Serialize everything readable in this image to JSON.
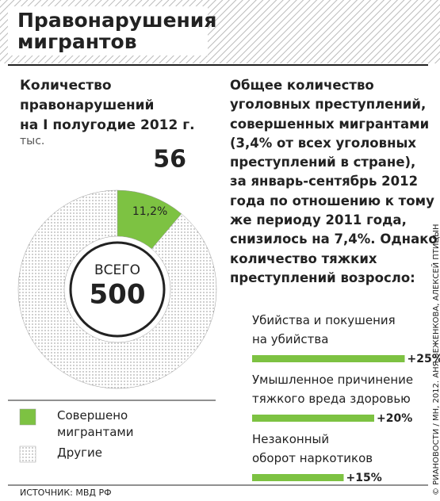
{
  "header": {
    "title": "Правонарушения\nмигрантов"
  },
  "left_heading": "Количество\nправонарушений\nна I полугодие 2012 г.",
  "unit": "тыс.",
  "right_heading": "Общее количество\nуголовных преступлений,\nсовершенных мигрантами\n(3,4% от всех уголовных\nпреступлений в стране),\nза январь-сентябрь 2012\nгода по отношению к тому\nже периоду 2011 года,\nснизилось на 7,4%. Однако\nколичество тяжких\nпреступлений возросло:",
  "source": "ИСТОЧНИК: МВД РФ",
  "credit": "© РИАНОВОСТИ / МН, 2012. АНЯ ВЕЖЕНКОВА, АЛЕКСЕЙ ПТИЦЫН",
  "chart_data": [
    {
      "type": "donut",
      "categories": [
        "Совершено\nмигрантами",
        "Другие"
      ],
      "values": [
        56,
        444
      ],
      "colors": [
        "#7dc242",
        "dotted"
      ],
      "share_label": "11,2%",
      "total_label": "ВСЕГО",
      "total": 500
    },
    {
      "type": "hbar",
      "categories": [
        "Убийства и покушения\nна убийства",
        "Умышленное причинение\nтяжкого вреда здоровью",
        "Незаконный\nоборот наркотиков"
      ],
      "values": [
        25,
        20,
        15
      ],
      "value_labels": [
        "+25%",
        "+20%",
        "+15%"
      ],
      "color": "#7dc242"
    }
  ]
}
